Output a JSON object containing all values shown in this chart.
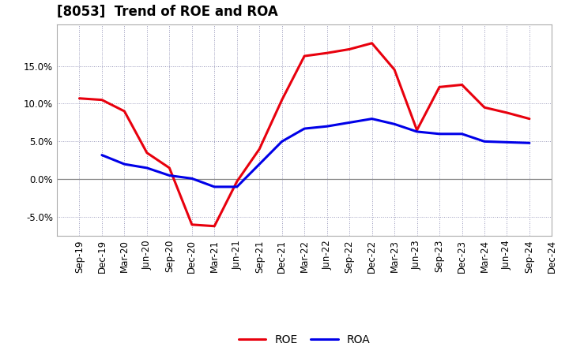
{
  "title": "[8053]  Trend of ROE and ROA",
  "x_labels": [
    "Sep-19",
    "Dec-19",
    "Mar-20",
    "Jun-20",
    "Sep-20",
    "Dec-20",
    "Mar-21",
    "Jun-21",
    "Sep-21",
    "Dec-21",
    "Mar-22",
    "Jun-22",
    "Sep-22",
    "Dec-22",
    "Mar-23",
    "Jun-23",
    "Sep-23",
    "Dec-23",
    "Mar-24",
    "Jun-24",
    "Sep-24",
    "Dec-24"
  ],
  "roe": [
    10.7,
    10.5,
    9.0,
    3.5,
    1.5,
    -6.0,
    -6.2,
    -0.3,
    4.0,
    10.5,
    16.3,
    16.7,
    17.2,
    18.0,
    14.5,
    6.5,
    12.2,
    12.5,
    9.5,
    8.8,
    8.0,
    null
  ],
  "roa": [
    null,
    3.2,
    2.0,
    1.5,
    0.5,
    0.1,
    -1.0,
    -1.0,
    2.0,
    5.0,
    6.7,
    7.0,
    7.5,
    8.0,
    7.3,
    6.3,
    6.0,
    6.0,
    5.0,
    4.9,
    4.8,
    null
  ],
  "roe_color": "#e8000d",
  "roa_color": "#0000e8",
  "background_color": "#ffffff",
  "plot_bg_color": "#ffffff",
  "grid_color": "#9999bb",
  "zero_line_color": "#888888",
  "ylim": [
    -7.5,
    20.5
  ],
  "yticks": [
    -5.0,
    0.0,
    5.0,
    10.0,
    15.0
  ],
  "title_fontsize": 12,
  "legend_fontsize": 10,
  "tick_fontsize": 8.5,
  "line_width": 2.2
}
